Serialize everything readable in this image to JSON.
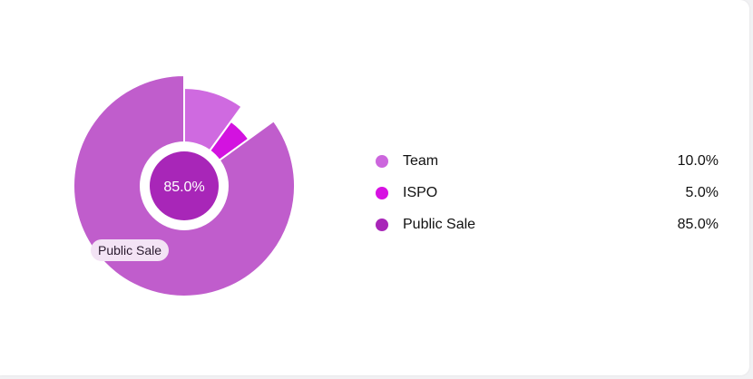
{
  "chart_data": {
    "type": "pie",
    "style": "donut",
    "categories": [
      "Team",
      "ISPO",
      "Public Sale"
    ],
    "values": [
      10.0,
      5.0,
      85.0
    ],
    "value_labels": [
      "10.0%",
      "5.0%",
      "85.0%"
    ],
    "colors": [
      "#cf6ae0",
      "#d312e0",
      "#c05dcc"
    ],
    "dot_colors": [
      "#cc66dd",
      "#d712e2",
      "#a826b8"
    ],
    "highlighted": {
      "category": "Public Sale",
      "center_label": "85.0%",
      "center_color": "#a826b8",
      "tooltip": "Public Sale"
    },
    "legend_position": "right",
    "title": "",
    "start_angle_deg": 0
  }
}
